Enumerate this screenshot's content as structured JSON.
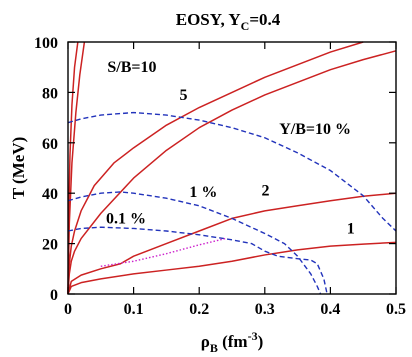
{
  "chart_data": {
    "type": "line",
    "title": {
      "main": "EOSY, Y",
      "sub": "C",
      "rest": "=0.4"
    },
    "xlabel": {
      "main": "ρ",
      "sub": "B",
      "rest": " (fm",
      "sup": "-3",
      "end": ")"
    },
    "ylabel": "T (MeV)",
    "xlim": [
      0,
      0.5
    ],
    "ylim": [
      0,
      100
    ],
    "xticks": [
      "0",
      "0.1",
      "0.2",
      "0.3",
      "0.4",
      "0.5"
    ],
    "yticks": [
      "0",
      "20",
      "40",
      "60",
      "80",
      "100"
    ],
    "grid": false,
    "colors": {
      "solid": "#cc2222",
      "dashed": "#2233bb",
      "dotted": "#cc22cc"
    },
    "series": [
      {
        "name": "S/B=1",
        "style": "solid",
        "label": "1",
        "x": [
          0,
          0.005,
          0.02,
          0.05,
          0.1,
          0.15,
          0.2,
          0.25,
          0.3,
          0.35,
          0.4,
          0.45,
          0.5
        ],
        "y": [
          0,
          3,
          4.5,
          6,
          8,
          9.5,
          11,
          13,
          15.5,
          17.5,
          19,
          19.8,
          20.5
        ]
      },
      {
        "name": "S/B=2",
        "style": "solid",
        "label": "2",
        "x": [
          0,
          0.005,
          0.02,
          0.05,
          0.08,
          0.1,
          0.15,
          0.2,
          0.25,
          0.3,
          0.35,
          0.4,
          0.45,
          0.5
        ],
        "y": [
          0,
          5,
          7.5,
          10,
          12,
          15,
          20,
          25,
          30,
          33,
          35,
          37,
          38.8,
          40
        ]
      },
      {
        "name": "S/B=5",
        "style": "solid",
        "label": "5",
        "x": [
          0,
          0.002,
          0.005,
          0.01,
          0.02,
          0.05,
          0.1,
          0.15,
          0.2,
          0.25,
          0.3,
          0.35,
          0.4,
          0.45,
          0.5
        ],
        "y": [
          0,
          8,
          13,
          17,
          22,
          32,
          46,
          57,
          66,
          73,
          79,
          84,
          89,
          93,
          96.5
        ]
      },
      {
        "name": "S/B=10",
        "style": "solid",
        "label": "S/B=10",
        "x": [
          0,
          0.002,
          0.005,
          0.01,
          0.02,
          0.03,
          0.04,
          0.05,
          0.07,
          0.1,
          0.15,
          0.2,
          0.25,
          0.3,
          0.35,
          0.4,
          0.45
        ],
        "y": [
          0,
          12,
          19,
          25,
          33,
          38,
          43,
          46,
          52,
          58,
          67,
          74,
          80,
          86,
          91,
          96,
          100
        ]
      },
      {
        "name": "steep-a",
        "style": "solid",
        "label": "",
        "x": [
          0,
          0.001,
          0.003,
          0.006,
          0.01,
          0.015
        ],
        "y": [
          0,
          30,
          55,
          75,
          90,
          100
        ]
      },
      {
        "name": "steep-b",
        "style": "solid",
        "label": "",
        "x": [
          0,
          0.002,
          0.006,
          0.012,
          0.018,
          0.025
        ],
        "y": [
          0,
          28,
          52,
          72,
          87,
          100
        ]
      },
      {
        "name": "Y/B=10 %",
        "style": "dashed",
        "label": "Y/B=10 %",
        "x": [
          0,
          0.02,
          0.05,
          0.08,
          0.1,
          0.12,
          0.15,
          0.2,
          0.25,
          0.3,
          0.35,
          0.4,
          0.45,
          0.48,
          0.5
        ],
        "y": [
          68,
          69.5,
          71,
          71.6,
          72,
          71.6,
          71,
          69,
          66,
          62,
          56,
          49,
          39,
          30,
          25
        ]
      },
      {
        "name": "Y/B=1 %",
        "style": "dashed",
        "label": "1 %",
        "x": [
          0,
          0.02,
          0.05,
          0.08,
          0.1,
          0.15,
          0.2,
          0.25,
          0.3,
          0.33,
          0.35,
          0.37,
          0.38,
          0.385
        ],
        "y": [
          37,
          38.5,
          40,
          40.5,
          40,
          38,
          35,
          30,
          24,
          20,
          15,
          8,
          3,
          0
        ]
      },
      {
        "name": "Y/B=0.1 %",
        "style": "dashed",
        "label": "0.1 %",
        "x": [
          0,
          0.02,
          0.05,
          0.1,
          0.15,
          0.2,
          0.25,
          0.28,
          0.3,
          0.32,
          0.35,
          0.37,
          0.38,
          0.39,
          0.395
        ],
        "y": [
          25,
          26,
          26.5,
          26,
          25,
          23.5,
          21.5,
          20,
          17,
          15,
          14,
          13.5,
          12,
          6,
          0
        ]
      },
      {
        "name": "dotted",
        "style": "dotted",
        "label": "",
        "x": [
          0.05,
          0.1,
          0.15,
          0.2,
          0.24
        ],
        "y": [
          11,
          13,
          16,
          19.5,
          22
        ]
      }
    ],
    "labels": [
      {
        "text": "S/B=10",
        "x": 0.06,
        "y": 88
      },
      {
        "text": "5",
        "x": 0.17,
        "y": 77
      },
      {
        "text": "Y/B=10 %",
        "x": 0.322,
        "y": 63.5
      },
      {
        "text": "1 %",
        "x": 0.185,
        "y": 38.5
      },
      {
        "text": "2",
        "x": 0.295,
        "y": 39
      },
      {
        "text": "0.1 %",
        "x": 0.058,
        "y": 28
      },
      {
        "text": "1",
        "x": 0.425,
        "y": 24
      }
    ]
  }
}
